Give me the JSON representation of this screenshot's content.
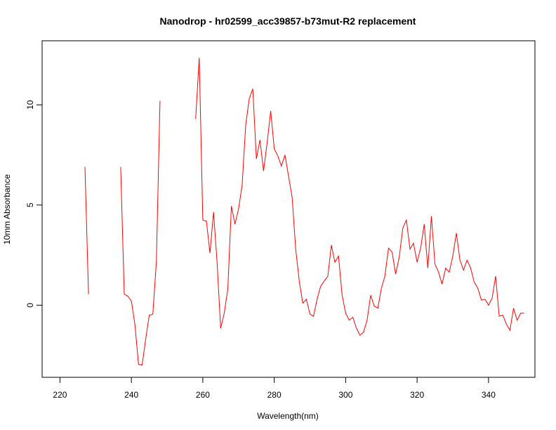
{
  "chart_data": {
    "type": "line",
    "title": "Nanodrop - hr02599_acc39857-b73mut-R2 replacement",
    "xlabel": "Wavelength(nm)",
    "ylabel": "10mm Absorbance",
    "xlim": [
      215,
      353
    ],
    "ylim": [
      -3.6,
      13.2
    ],
    "x_ticks": [
      220,
      240,
      260,
      280,
      300,
      320,
      340
    ],
    "y_ticks": [
      0,
      5,
      10
    ],
    "x_tick_labels": [
      "220",
      "240",
      "260",
      "280",
      "300",
      "320",
      "340"
    ],
    "y_tick_labels": [
      "0",
      "5",
      "10"
    ],
    "grid": false,
    "line_color": "#ff0000",
    "series": [
      {
        "segments": [
          [
            [
              227,
              6.9
            ],
            [
              228,
              0.55
            ]
          ],
          [
            [
              237,
              6.9
            ],
            [
              238,
              0.55
            ],
            [
              239,
              0.45
            ],
            [
              240,
              0.2
            ],
            [
              241,
              -1.0
            ],
            [
              242,
              -2.95
            ],
            [
              243,
              -3.0
            ],
            [
              244,
              -1.7
            ],
            [
              245,
              -0.5
            ],
            [
              246,
              -0.45
            ],
            [
              247,
              2.2
            ],
            [
              248,
              10.2
            ]
          ],
          [
            [
              258,
              9.3
            ],
            [
              259,
              12.35
            ],
            [
              260,
              4.25
            ],
            [
              261,
              4.2
            ],
            [
              262,
              2.6
            ],
            [
              263,
              4.65
            ],
            [
              264,
              2.1
            ],
            [
              265,
              -1.15
            ],
            [
              266,
              -0.4
            ],
            [
              267,
              0.8
            ],
            [
              268,
              4.95
            ],
            [
              269,
              4.05
            ],
            [
              270,
              4.8
            ],
            [
              271,
              6.0
            ],
            [
              272,
              9.0
            ],
            [
              273,
              10.3
            ],
            [
              274,
              10.8
            ],
            [
              275,
              7.3
            ],
            [
              276,
              8.25
            ],
            [
              277,
              6.7
            ],
            [
              278,
              8.1
            ],
            [
              279,
              9.7
            ],
            [
              280,
              7.8
            ],
            [
              281,
              7.45
            ],
            [
              282,
              6.95
            ],
            [
              283,
              7.5
            ],
            [
              284,
              6.45
            ],
            [
              285,
              5.4
            ],
            [
              286,
              2.8
            ],
            [
              287,
              1.2
            ],
            [
              288,
              0.1
            ],
            [
              289,
              0.3
            ],
            [
              290,
              -0.45
            ],
            [
              291,
              -0.55
            ],
            [
              292,
              0.3
            ],
            [
              293,
              0.95
            ],
            [
              294,
              1.2
            ],
            [
              295,
              1.45
            ],
            [
              296,
              3.0
            ],
            [
              297,
              2.15
            ],
            [
              298,
              2.45
            ],
            [
              299,
              0.5
            ],
            [
              300,
              -0.4
            ],
            [
              301,
              -0.75
            ],
            [
              302,
              -0.6
            ],
            [
              303,
              -1.15
            ],
            [
              304,
              -1.5
            ],
            [
              305,
              -1.35
            ],
            [
              306,
              -0.75
            ],
            [
              307,
              0.5
            ],
            [
              308,
              -0.05
            ],
            [
              309,
              -0.15
            ],
            [
              310,
              0.85
            ],
            [
              311,
              1.45
            ],
            [
              312,
              2.85
            ],
            [
              313,
              2.65
            ],
            [
              314,
              1.55
            ],
            [
              315,
              2.4
            ],
            [
              316,
              3.85
            ],
            [
              317,
              4.25
            ],
            [
              318,
              2.8
            ],
            [
              319,
              3.1
            ],
            [
              320,
              2.15
            ],
            [
              321,
              2.85
            ],
            [
              322,
              4.05
            ],
            [
              323,
              1.85
            ],
            [
              324,
              4.45
            ],
            [
              325,
              2.05
            ],
            [
              326,
              1.65
            ],
            [
              327,
              1.05
            ],
            [
              328,
              1.85
            ],
            [
              329,
              1.65
            ],
            [
              330,
              2.45
            ],
            [
              331,
              3.6
            ],
            [
              332,
              2.25
            ],
            [
              333,
              1.75
            ],
            [
              334,
              2.25
            ],
            [
              335,
              1.85
            ],
            [
              336,
              1.15
            ],
            [
              337,
              0.85
            ],
            [
              338,
              0.25
            ],
            [
              339,
              0.3
            ],
            [
              340,
              0.0
            ],
            [
              341,
              0.35
            ],
            [
              342,
              1.45
            ],
            [
              343,
              -0.55
            ],
            [
              344,
              -0.5
            ],
            [
              345,
              -0.95
            ],
            [
              346,
              -1.25
            ],
            [
              347,
              -0.15
            ],
            [
              348,
              -0.75
            ],
            [
              349,
              -0.4
            ],
            [
              350,
              -0.4
            ]
          ]
        ]
      }
    ]
  }
}
